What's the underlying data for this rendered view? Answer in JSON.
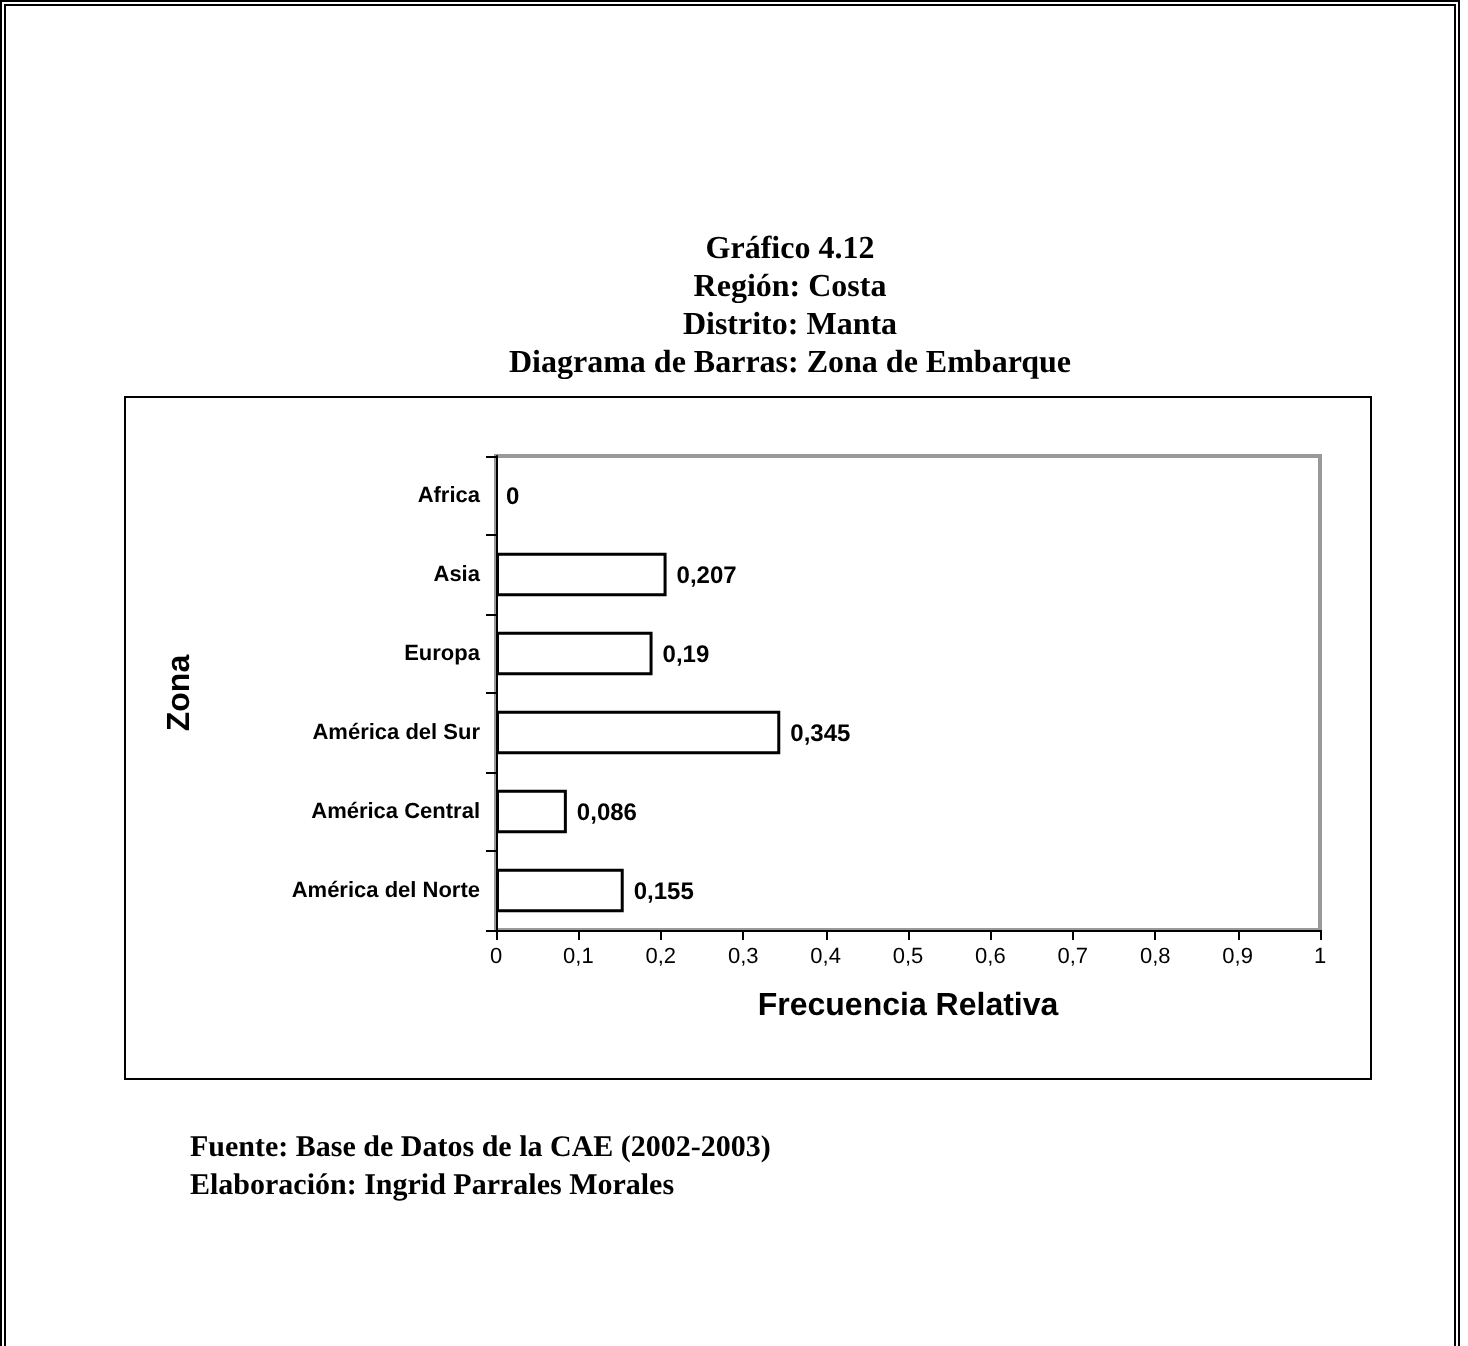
{
  "chart_data": {
    "type": "bar",
    "orientation": "horizontal",
    "title": "Gráfico 4.12",
    "subtitle": "Región: Costa\nDistrito: Manta\nDiagrama de Barras: Zona de Embarque",
    "xlabel": "Frecuencia Relativa",
    "ylabel": "Zona",
    "categories": [
      "Africa",
      "Asia",
      "Europa",
      "América del Sur",
      "América Central",
      "América del Norte"
    ],
    "values": [
      0,
      0.207,
      0.19,
      0.345,
      0.086,
      0.155
    ],
    "value_labels": [
      "0",
      "0,207",
      "0,19",
      "0,345",
      "0,086",
      "0,155"
    ],
    "color": "#ffffff",
    "xlim": [
      0,
      1
    ],
    "xticks": [
      0,
      {
        "value": 0.1,
        "label": "0,1"
      },
      {
        "value": 0.2,
        "label": "0,2"
      },
      {
        "value": 0.3,
        "label": "0,3"
      },
      {
        "value": 0.4,
        "label": "0,4"
      },
      {
        "value": 0.5,
        "label": "0,5"
      },
      {
        "value": 0.6,
        "label": "0,6"
      },
      {
        "value": 0.7,
        "label": "0,7"
      },
      {
        "value": 0.8,
        "label": "0,8"
      },
      {
        "value": 0.9,
        "label": "0,9"
      },
      1
    ],
    "grid": false,
    "annotations": [
      "Fuente: Base de Datos de la CAE (2002-2003)",
      "Elaboración: Ingrid Parrales Morales"
    ]
  }
}
